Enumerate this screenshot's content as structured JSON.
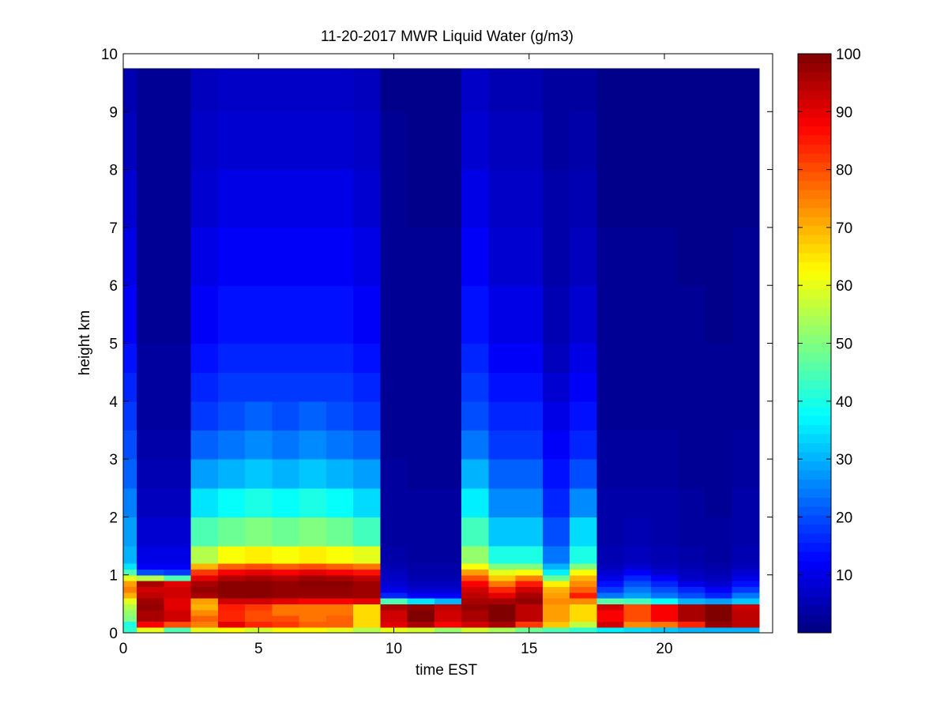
{
  "chart_data": {
    "type": "heatmap",
    "title": "11-20-2017 MWR Liquid Water (g/m3)",
    "xlabel": "time EST",
    "ylabel": "height km",
    "xlim": [
      0,
      24
    ],
    "ylim": [
      0,
      10
    ],
    "data_top_km": 9.75,
    "data_end_hr": 23.5,
    "x_ticks": [
      "0",
      "5",
      "10",
      "15",
      "20"
    ],
    "x_tick_values": [
      0,
      5,
      10,
      15,
      20
    ],
    "y_ticks": [
      "0",
      "1",
      "2",
      "3",
      "4",
      "5",
      "6",
      "7",
      "8",
      "9",
      "10"
    ],
    "y_tick_values": [
      0,
      1,
      2,
      3,
      4,
      5,
      6,
      7,
      8,
      9,
      10
    ],
    "colorbar": {
      "colormap": "jet",
      "clim": [
        0,
        100
      ],
      "ticks": [
        "10",
        "20",
        "30",
        "40",
        "50",
        "60",
        "70",
        "80",
        "90",
        "100"
      ],
      "tick_values": [
        10,
        20,
        30,
        40,
        50,
        60,
        70,
        80,
        90,
        100
      ]
    },
    "time_bins_hr": [
      0.0,
      0.5,
      1.5,
      2.5,
      3.5,
      4.5,
      5.5,
      6.5,
      7.5,
      8.5,
      9.5,
      10.5,
      11.5,
      12.5,
      13.5,
      14.5,
      15.5,
      16.5,
      17.5,
      18.5,
      19.5,
      20.5,
      21.5,
      22.5,
      23.5
    ],
    "height_bins_km": [
      0,
      0.1,
      0.2,
      0.3,
      0.4,
      0.5,
      0.6,
      0.7,
      0.8,
      0.9,
      1.0,
      1.1,
      1.2,
      1.5,
      2.0,
      2.5,
      3.0,
      3.5,
      4.0,
      4.5,
      5.0,
      6.0,
      7.0,
      8.0,
      9.0,
      9.75
    ],
    "values": [
      [
        42,
        40,
        50,
        52,
        55,
        60,
        70,
        75,
        72,
        60,
        45,
        35,
        30,
        28,
        25,
        22,
        20,
        18,
        16,
        14,
        12,
        10,
        8,
        6,
        5
      ],
      [
        60,
        88,
        96,
        96,
        98,
        97,
        94,
        92,
        96,
        55,
        20,
        12,
        10,
        8,
        6,
        5,
        4,
        3,
        3,
        3,
        2,
        2,
        2,
        2,
        2
      ],
      [
        45,
        80,
        92,
        92,
        90,
        90,
        92,
        92,
        90,
        45,
        18,
        12,
        10,
        8,
        6,
        5,
        4,
        3,
        3,
        3,
        2,
        2,
        2,
        2,
        2
      ],
      [
        60,
        75,
        78,
        74,
        70,
        72,
        96,
        98,
        96,
        90,
        82,
        70,
        55,
        45,
        35,
        28,
        22,
        18,
        16,
        14,
        12,
        10,
        8,
        7,
        6
      ],
      [
        62,
        90,
        84,
        84,
        85,
        92,
        99,
        99,
        99,
        95,
        88,
        78,
        62,
        48,
        38,
        30,
        24,
        20,
        18,
        16,
        14,
        12,
        10,
        8,
        7
      ],
      [
        58,
        84,
        80,
        80,
        82,
        92,
        99,
        99,
        99,
        96,
        90,
        80,
        64,
        50,
        40,
        32,
        26,
        22,
        18,
        16,
        14,
        12,
        10,
        8,
        7
      ],
      [
        62,
        82,
        80,
        76,
        76,
        90,
        98,
        98,
        98,
        95,
        88,
        78,
        62,
        48,
        38,
        30,
        24,
        20,
        18,
        16,
        14,
        12,
        10,
        8,
        7
      ],
      [
        62,
        78,
        76,
        76,
        76,
        88,
        98,
        98,
        99,
        97,
        90,
        80,
        64,
        50,
        40,
        32,
        26,
        22,
        18,
        16,
        14,
        12,
        10,
        8,
        7
      ],
      [
        60,
        78,
        78,
        76,
        76,
        88,
        98,
        98,
        99,
        96,
        88,
        78,
        62,
        48,
        38,
        30,
        24,
        20,
        18,
        16,
        14,
        12,
        10,
        8,
        7
      ],
      [
        55,
        66,
        66,
        66,
        66,
        90,
        97,
        97,
        97,
        94,
        86,
        76,
        60,
        44,
        34,
        28,
        22,
        18,
        16,
        14,
        12,
        10,
        8,
        7,
        6
      ],
      [
        60,
        90,
        92,
        92,
        96,
        45,
        16,
        10,
        8,
        7,
        6,
        5,
        4,
        3,
        3,
        3,
        2,
        2,
        2,
        2,
        2,
        2,
        2,
        2,
        1
      ],
      [
        58,
        96,
        100,
        100,
        98,
        35,
        12,
        8,
        6,
        5,
        4,
        4,
        3,
        3,
        3,
        2,
        2,
        2,
        2,
        2,
        2,
        2,
        1,
        1,
        1
      ],
      [
        52,
        88,
        92,
        92,
        94,
        30,
        12,
        8,
        6,
        5,
        4,
        4,
        3,
        3,
        3,
        2,
        2,
        2,
        2,
        2,
        2,
        2,
        1,
        1,
        1
      ],
      [
        58,
        92,
        96,
        96,
        98,
        96,
        94,
        92,
        88,
        80,
        72,
        62,
        52,
        44,
        36,
        30,
        24,
        20,
        18,
        16,
        14,
        12,
        10,
        8,
        7
      ],
      [
        54,
        96,
        100,
        100,
        100,
        96,
        90,
        84,
        76,
        68,
        60,
        50,
        40,
        32,
        26,
        22,
        18,
        16,
        14,
        12,
        10,
        8,
        7,
        6,
        5
      ],
      [
        48,
        82,
        94,
        94,
        94,
        98,
        96,
        92,
        85,
        75,
        62,
        50,
        40,
        32,
        26,
        22,
        18,
        16,
        14,
        12,
        10,
        8,
        7,
        6,
        5
      ],
      [
        45,
        68,
        72,
        72,
        72,
        74,
        72,
        70,
        64,
        48,
        36,
        30,
        24,
        20,
        16,
        14,
        12,
        10,
        8,
        6,
        5,
        4,
        4,
        3,
        3
      ],
      [
        42,
        56,
        66,
        66,
        66,
        74,
        85,
        78,
        74,
        70,
        62,
        50,
        40,
        34,
        26,
        20,
        16,
        14,
        12,
        10,
        8,
        6,
        5,
        4,
        3
      ],
      [
        36,
        92,
        88,
        88,
        92,
        46,
        24,
        18,
        14,
        10,
        8,
        6,
        5,
        4,
        4,
        3,
        3,
        2,
        2,
        2,
        2,
        2,
        1,
        1,
        1
      ],
      [
        34,
        74,
        80,
        80,
        80,
        44,
        28,
        24,
        20,
        16,
        12,
        8,
        6,
        5,
        4,
        3,
        3,
        2,
        2,
        2,
        2,
        2,
        1,
        1,
        1
      ],
      [
        32,
        76,
        88,
        88,
        88,
        38,
        24,
        20,
        16,
        12,
        8,
        6,
        5,
        4,
        4,
        3,
        3,
        2,
        2,
        2,
        2,
        2,
        1,
        1,
        1
      ],
      [
        30,
        84,
        96,
        96,
        96,
        30,
        20,
        16,
        10,
        7,
        6,
        5,
        4,
        3,
        3,
        2,
        2,
        2,
        2,
        2,
        2,
        1,
        1,
        1,
        1
      ],
      [
        30,
        98,
        100,
        100,
        100,
        28,
        16,
        12,
        8,
        6,
        5,
        4,
        3,
        3,
        2,
        2,
        2,
        2,
        2,
        2,
        1,
        1,
        1,
        1,
        1
      ],
      [
        30,
        94,
        94,
        94,
        92,
        32,
        24,
        18,
        14,
        10,
        8,
        6,
        5,
        4,
        4,
        3,
        3,
        2,
        2,
        2,
        2,
        2,
        1,
        1,
        1
      ],
      [
        32,
        92,
        92,
        92,
        92,
        34,
        26,
        22,
        18,
        14,
        10,
        8,
        6,
        5,
        4,
        3,
        3,
        2,
        2,
        2,
        2,
        2,
        1,
        1,
        1
      ]
    ]
  }
}
